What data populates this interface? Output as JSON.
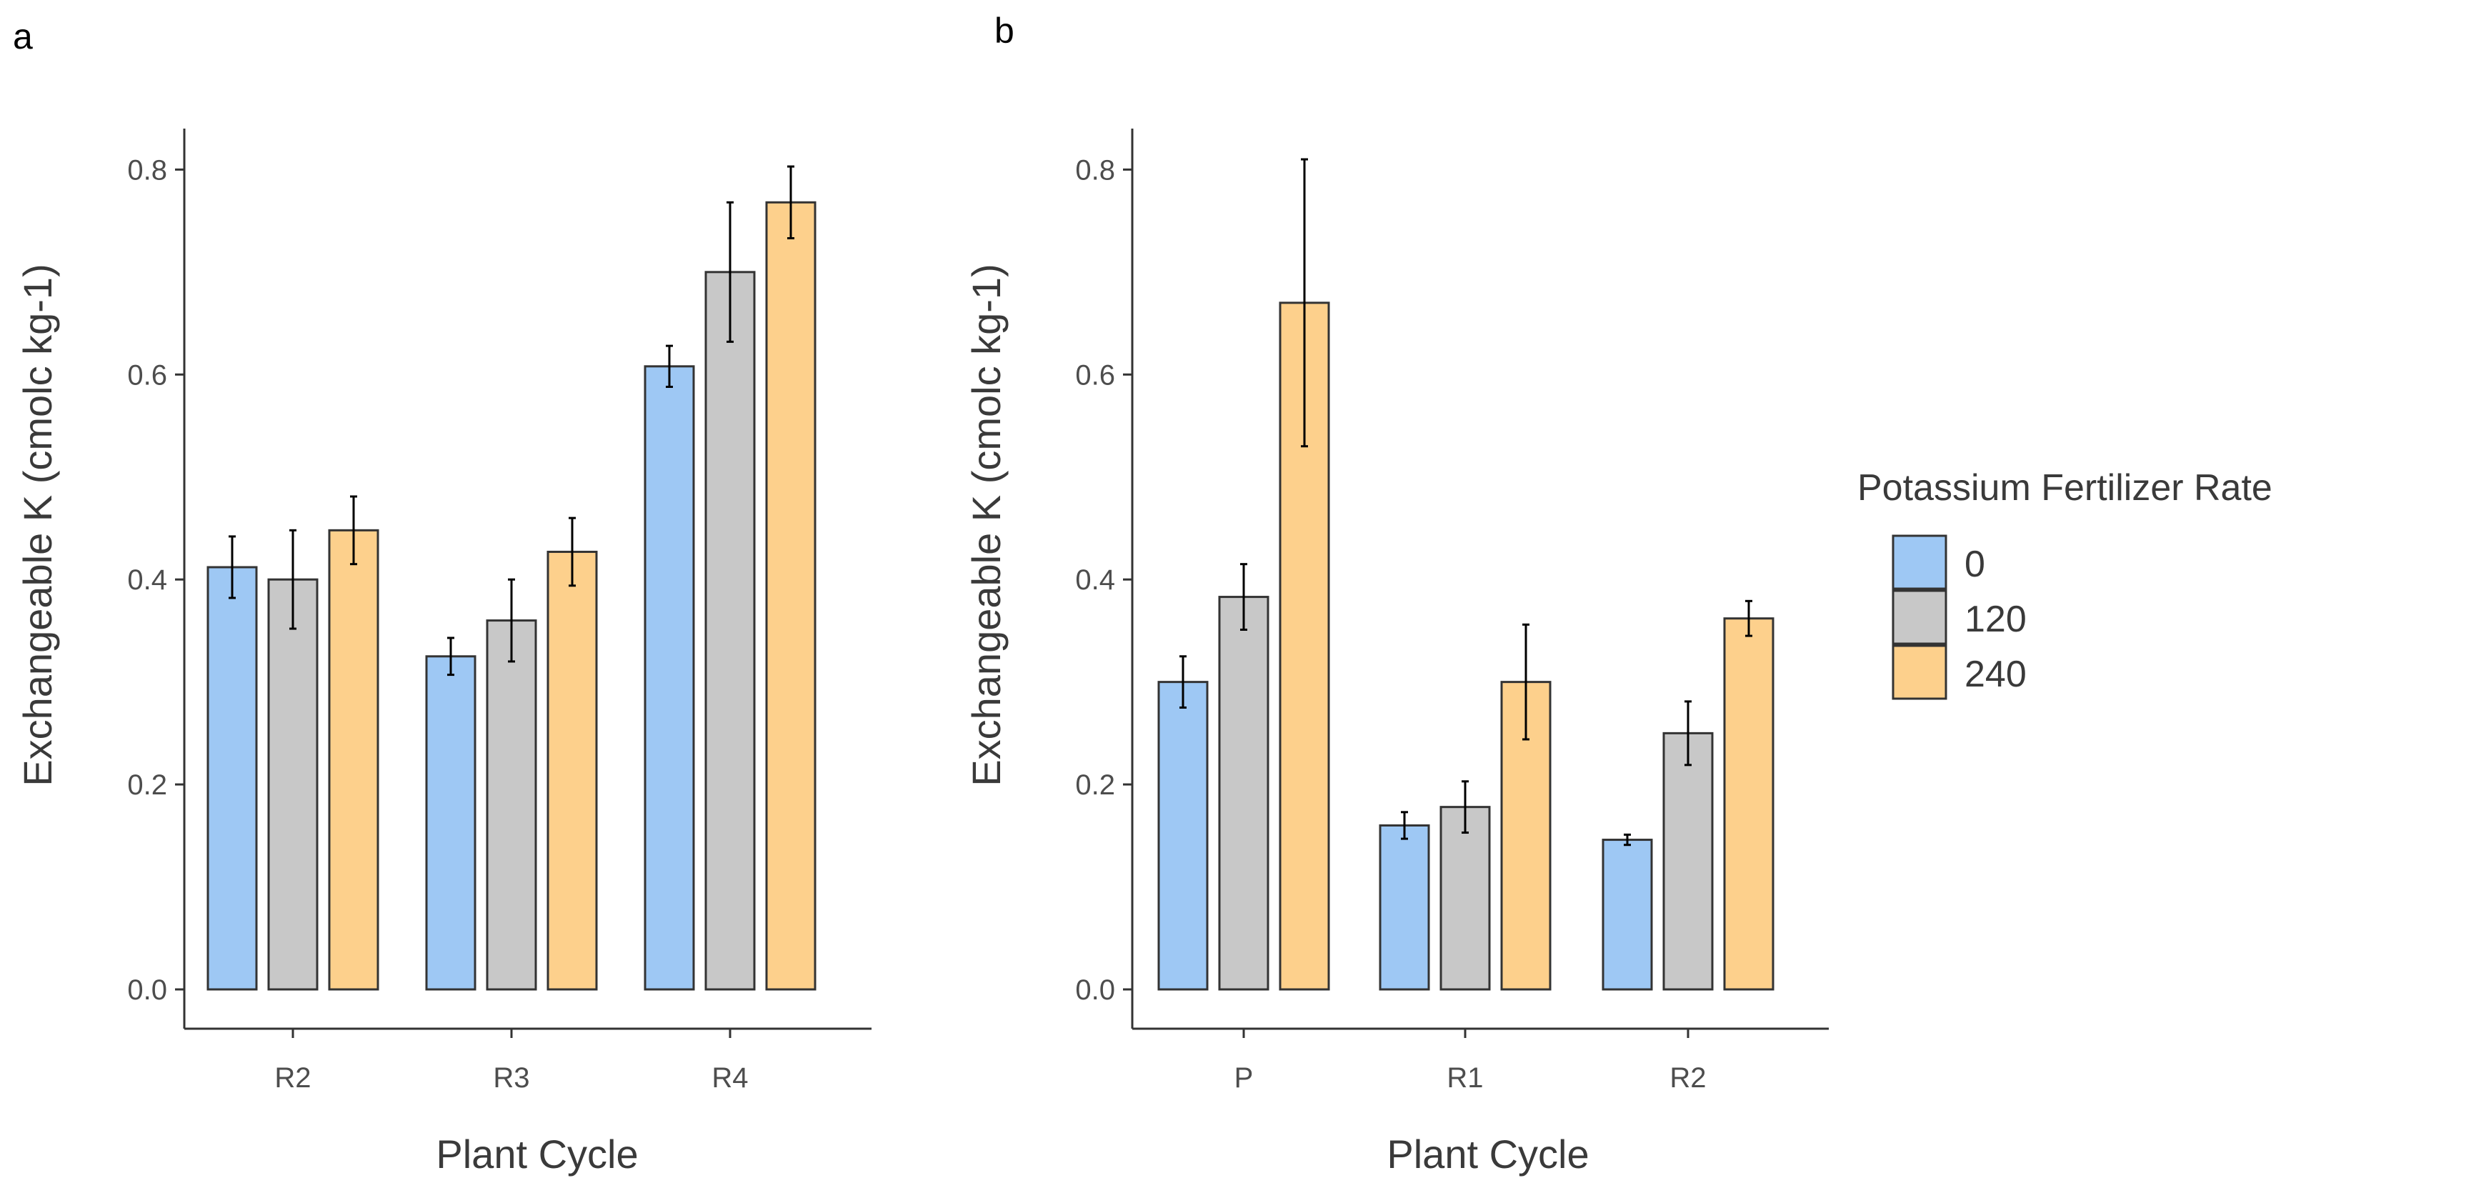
{
  "chart_data": [
    {
      "type": "bar",
      "panel_label": "a",
      "categories": [
        "R2",
        "R3",
        "R4"
      ],
      "series": [
        {
          "name": "0",
          "values": [
            0.412,
            0.325,
            0.608
          ],
          "errors": [
            0.03,
            0.018,
            0.02
          ]
        },
        {
          "name": "120",
          "values": [
            0.4,
            0.36,
            0.7
          ],
          "errors": [
            0.048,
            0.04,
            0.068
          ]
        },
        {
          "name": "240",
          "values": [
            0.448,
            0.427,
            0.768
          ],
          "errors": [
            0.033,
            0.033,
            0.035
          ]
        }
      ],
      "xlabel": "Plant Cycle",
      "ylabel": "Exchangeable K (cmolc kg-1)",
      "ylim": [
        0,
        0.84
      ],
      "yticks": [
        0.0,
        0.2,
        0.4,
        0.6,
        0.8
      ],
      "ytick_labels": [
        "0.0",
        "0.2",
        "0.4",
        "0.6",
        "0.8"
      ],
      "grid": false
    },
    {
      "type": "bar",
      "panel_label": "b",
      "categories": [
        "P",
        "R1",
        "R2"
      ],
      "series": [
        {
          "name": "0",
          "values": [
            0.3,
            0.16,
            0.146
          ],
          "errors": [
            0.025,
            0.013,
            0.005
          ]
        },
        {
          "name": "120",
          "values": [
            0.383,
            0.178,
            0.25
          ],
          "errors": [
            0.032,
            0.025,
            0.031
          ]
        },
        {
          "name": "240",
          "values": [
            0.67,
            0.3,
            0.362
          ],
          "errors": [
            0.14,
            0.056,
            0.017
          ]
        }
      ],
      "xlabel": "Plant Cycle",
      "ylabel": "Exchangeable K (cmolc kg-1)",
      "ylim": [
        0,
        0.84
      ],
      "yticks": [
        0.0,
        0.2,
        0.4,
        0.6,
        0.8
      ],
      "ytick_labels": [
        "0.0",
        "0.2",
        "0.4",
        "0.6",
        "0.8"
      ],
      "grid": false
    }
  ],
  "legend": {
    "title": "Potassium Fertilizer Rate",
    "placement": "right",
    "items": [
      {
        "label": "0",
        "color": "#9ec8f4"
      },
      {
        "label": "120",
        "color": "#c8c8c8"
      },
      {
        "label": "240",
        "color": "#fdd08c"
      }
    ]
  },
  "colors": {
    "series": [
      "#9ec8f4",
      "#c8c8c8",
      "#fdd08c"
    ],
    "bar_outline": "#333333",
    "axis": "#333333",
    "errorbar": "#000000"
  }
}
